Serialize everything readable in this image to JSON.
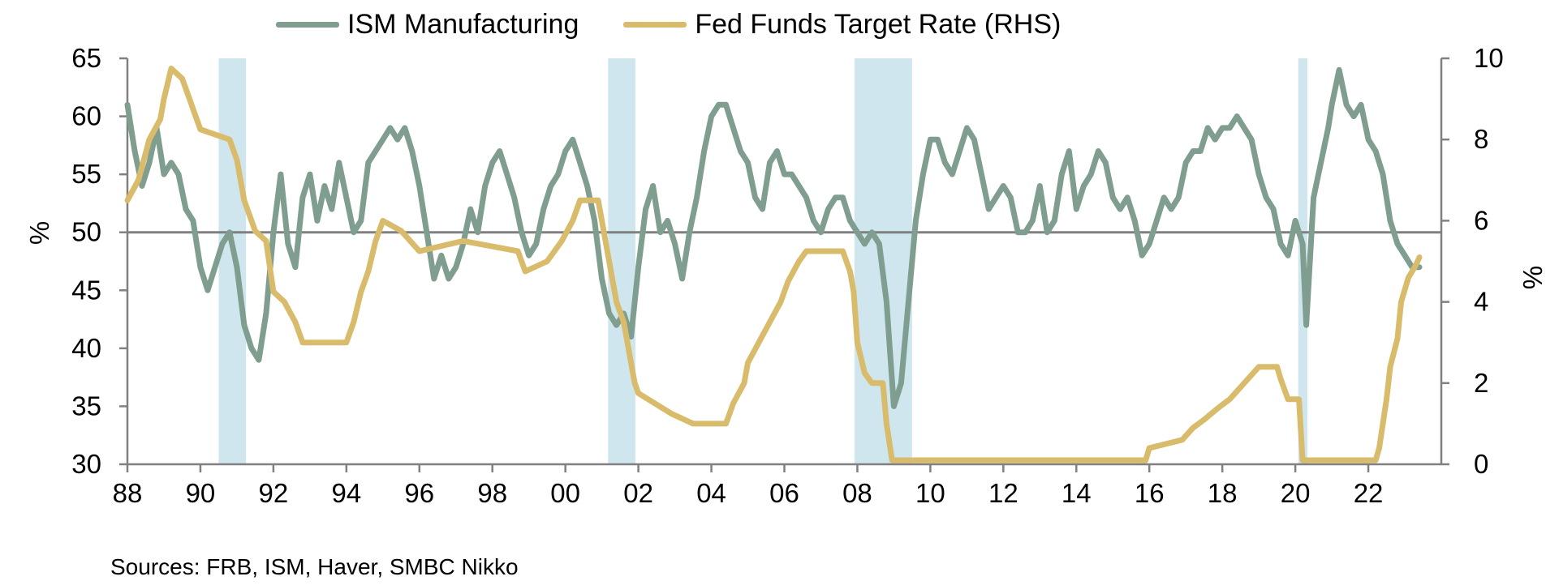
{
  "chart_data": {
    "type": "line",
    "title": "",
    "legend": [
      {
        "name": "ISM Manufacturing",
        "color": "#7f9e8f"
      },
      {
        "name": "Fed Funds Target Rate (RHS)",
        "color": "#d9bb6c"
      }
    ],
    "xlabel": "",
    "ylabel_left": "%",
    "ylabel_right": "%",
    "x_range": [
      1988.0,
      2024.0
    ],
    "x_ticks": [
      1988,
      1990,
      1992,
      1994,
      1996,
      1998,
      2000,
      2002,
      2004,
      2006,
      2008,
      2010,
      2012,
      2014,
      2016,
      2018,
      2020,
      2022
    ],
    "x_tick_labels": [
      "88",
      "90",
      "92",
      "94",
      "96",
      "98",
      "00",
      "02",
      "04",
      "06",
      "08",
      "10",
      "12",
      "14",
      "16",
      "18",
      "20",
      "22"
    ],
    "y_left": {
      "min": 30,
      "max": 65,
      "ticks": [
        30,
        35,
        40,
        45,
        50,
        55,
        60,
        65
      ]
    },
    "y_right": {
      "min": 0,
      "max": 10,
      "ticks": [
        0,
        2,
        4,
        6,
        8,
        10
      ]
    },
    "reference_line": {
      "axis": "left",
      "value": 50
    },
    "recessions": [
      [
        1990.5,
        1991.25
      ],
      [
        2001.17,
        2001.92
      ],
      [
        2007.92,
        2009.5
      ],
      [
        2020.08,
        2020.33
      ]
    ],
    "series": [
      {
        "name": "ISM Manufacturing",
        "axis": "left",
        "color": "#7f9e8f",
        "points": [
          [
            1988.0,
            61
          ],
          [
            1988.2,
            57
          ],
          [
            1988.4,
            54
          ],
          [
            1988.6,
            56
          ],
          [
            1988.8,
            59
          ],
          [
            1989.0,
            55
          ],
          [
            1989.2,
            56
          ],
          [
            1989.4,
            55
          ],
          [
            1989.6,
            52
          ],
          [
            1989.8,
            51
          ],
          [
            1990.0,
            47
          ],
          [
            1990.2,
            45
          ],
          [
            1990.4,
            47
          ],
          [
            1990.6,
            49
          ],
          [
            1990.8,
            50
          ],
          [
            1991.0,
            47
          ],
          [
            1991.2,
            42
          ],
          [
            1991.4,
            40
          ],
          [
            1991.6,
            39
          ],
          [
            1991.8,
            43
          ],
          [
            1992.0,
            50
          ],
          [
            1992.2,
            55
          ],
          [
            1992.4,
            49
          ],
          [
            1992.6,
            47
          ],
          [
            1992.8,
            53
          ],
          [
            1993.0,
            55
          ],
          [
            1993.2,
            51
          ],
          [
            1993.4,
            54
          ],
          [
            1993.6,
            52
          ],
          [
            1993.8,
            56
          ],
          [
            1994.0,
            53
          ],
          [
            1994.2,
            50
          ],
          [
            1994.4,
            51
          ],
          [
            1994.6,
            56
          ],
          [
            1994.8,
            57
          ],
          [
            1995.0,
            58
          ],
          [
            1995.2,
            59
          ],
          [
            1995.4,
            58
          ],
          [
            1995.6,
            59
          ],
          [
            1995.8,
            57
          ],
          [
            1996.0,
            54
          ],
          [
            1996.2,
            50
          ],
          [
            1996.4,
            46
          ],
          [
            1996.6,
            48
          ],
          [
            1996.8,
            46
          ],
          [
            1997.0,
            47
          ],
          [
            1997.2,
            49
          ],
          [
            1997.4,
            52
          ],
          [
            1997.6,
            50
          ],
          [
            1997.8,
            54
          ],
          [
            1998.0,
            56
          ],
          [
            1998.2,
            57
          ],
          [
            1998.4,
            55
          ],
          [
            1998.6,
            53
          ],
          [
            1998.8,
            50
          ],
          [
            1999.0,
            48
          ],
          [
            1999.2,
            49
          ],
          [
            1999.4,
            52
          ],
          [
            1999.6,
            54
          ],
          [
            1999.8,
            55
          ],
          [
            2000.0,
            57
          ],
          [
            2000.2,
            58
          ],
          [
            2000.4,
            56
          ],
          [
            2000.6,
            54
          ],
          [
            2000.8,
            51
          ],
          [
            2001.0,
            46
          ],
          [
            2001.2,
            43
          ],
          [
            2001.4,
            42
          ],
          [
            2001.6,
            43
          ],
          [
            2001.8,
            41
          ],
          [
            2002.0,
            47
          ],
          [
            2002.2,
            52
          ],
          [
            2002.4,
            54
          ],
          [
            2002.6,
            50
          ],
          [
            2002.8,
            51
          ],
          [
            2003.0,
            49
          ],
          [
            2003.2,
            46
          ],
          [
            2003.4,
            50
          ],
          [
            2003.6,
            53
          ],
          [
            2003.8,
            57
          ],
          [
            2004.0,
            60
          ],
          [
            2004.2,
            61
          ],
          [
            2004.4,
            61
          ],
          [
            2004.6,
            59
          ],
          [
            2004.8,
            57
          ],
          [
            2005.0,
            56
          ],
          [
            2005.2,
            53
          ],
          [
            2005.4,
            52
          ],
          [
            2005.6,
            56
          ],
          [
            2005.8,
            57
          ],
          [
            2006.0,
            55
          ],
          [
            2006.2,
            55
          ],
          [
            2006.4,
            54
          ],
          [
            2006.6,
            53
          ],
          [
            2006.8,
            51
          ],
          [
            2007.0,
            50
          ],
          [
            2007.2,
            52
          ],
          [
            2007.4,
            53
          ],
          [
            2007.6,
            53
          ],
          [
            2007.8,
            51
          ],
          [
            2008.0,
            50
          ],
          [
            2008.2,
            49
          ],
          [
            2008.4,
            50
          ],
          [
            2008.6,
            49
          ],
          [
            2008.8,
            44
          ],
          [
            2009.0,
            35
          ],
          [
            2009.2,
            37
          ],
          [
            2009.4,
            44
          ],
          [
            2009.6,
            51
          ],
          [
            2009.8,
            55
          ],
          [
            2010.0,
            58
          ],
          [
            2010.2,
            58
          ],
          [
            2010.4,
            56
          ],
          [
            2010.6,
            55
          ],
          [
            2010.8,
            57
          ],
          [
            2011.0,
            59
          ],
          [
            2011.2,
            58
          ],
          [
            2011.4,
            55
          ],
          [
            2011.6,
            52
          ],
          [
            2011.8,
            53
          ],
          [
            2012.0,
            54
          ],
          [
            2012.2,
            53
          ],
          [
            2012.4,
            50
          ],
          [
            2012.6,
            50
          ],
          [
            2012.8,
            51
          ],
          [
            2013.0,
            54
          ],
          [
            2013.2,
            50
          ],
          [
            2013.4,
            51
          ],
          [
            2013.6,
            55
          ],
          [
            2013.8,
            57
          ],
          [
            2014.0,
            52
          ],
          [
            2014.2,
            54
          ],
          [
            2014.4,
            55
          ],
          [
            2014.6,
            57
          ],
          [
            2014.8,
            56
          ],
          [
            2015.0,
            53
          ],
          [
            2015.2,
            52
          ],
          [
            2015.4,
            53
          ],
          [
            2015.6,
            51
          ],
          [
            2015.8,
            48
          ],
          [
            2016.0,
            49
          ],
          [
            2016.2,
            51
          ],
          [
            2016.4,
            53
          ],
          [
            2016.6,
            52
          ],
          [
            2016.8,
            53
          ],
          [
            2017.0,
            56
          ],
          [
            2017.2,
            57
          ],
          [
            2017.4,
            57
          ],
          [
            2017.6,
            59
          ],
          [
            2017.8,
            58
          ],
          [
            2018.0,
            59
          ],
          [
            2018.2,
            59
          ],
          [
            2018.4,
            60
          ],
          [
            2018.6,
            59
          ],
          [
            2018.8,
            58
          ],
          [
            2019.0,
            55
          ],
          [
            2019.2,
            53
          ],
          [
            2019.4,
            52
          ],
          [
            2019.6,
            49
          ],
          [
            2019.8,
            48
          ],
          [
            2020.0,
            51
          ],
          [
            2020.2,
            49
          ],
          [
            2020.3,
            42
          ],
          [
            2020.5,
            53
          ],
          [
            2020.7,
            56
          ],
          [
            2020.9,
            59
          ],
          [
            2021.0,
            61
          ],
          [
            2021.2,
            64
          ],
          [
            2021.4,
            61
          ],
          [
            2021.6,
            60
          ],
          [
            2021.8,
            61
          ],
          [
            2022.0,
            58
          ],
          [
            2022.2,
            57
          ],
          [
            2022.4,
            55
          ],
          [
            2022.6,
            51
          ],
          [
            2022.8,
            49
          ],
          [
            2023.0,
            48
          ],
          [
            2023.2,
            47
          ],
          [
            2023.4,
            47
          ]
        ]
      },
      {
        "name": "Fed Funds Target Rate (RHS)",
        "axis": "right",
        "color": "#d9bb6c",
        "points": [
          [
            1988.0,
            6.5
          ],
          [
            1988.3,
            7
          ],
          [
            1988.6,
            8
          ],
          [
            1988.9,
            8.5
          ],
          [
            1989.0,
            9
          ],
          [
            1989.2,
            9.75
          ],
          [
            1989.5,
            9.5
          ],
          [
            1989.7,
            9
          ],
          [
            1989.9,
            8.5
          ],
          [
            1990.0,
            8.25
          ],
          [
            1990.8,
            8
          ],
          [
            1991.0,
            7.5
          ],
          [
            1991.2,
            6.5
          ],
          [
            1991.5,
            5.75
          ],
          [
            1991.8,
            5.5
          ],
          [
            1992.0,
            4.25
          ],
          [
            1992.3,
            4
          ],
          [
            1992.6,
            3.5
          ],
          [
            1992.8,
            3
          ],
          [
            1994.0,
            3
          ],
          [
            1994.2,
            3.5
          ],
          [
            1994.4,
            4.25
          ],
          [
            1994.6,
            4.75
          ],
          [
            1994.8,
            5.5
          ],
          [
            1995.0,
            6
          ],
          [
            1995.5,
            5.75
          ],
          [
            1996.0,
            5.25
          ],
          [
            1997.2,
            5.5
          ],
          [
            1998.7,
            5.25
          ],
          [
            1998.9,
            4.75
          ],
          [
            1999.5,
            5
          ],
          [
            1999.7,
            5.25
          ],
          [
            1999.9,
            5.5
          ],
          [
            2000.2,
            6
          ],
          [
            2000.4,
            6.5
          ],
          [
            2000.9,
            6.5
          ],
          [
            2001.0,
            6
          ],
          [
            2001.2,
            5
          ],
          [
            2001.4,
            4
          ],
          [
            2001.6,
            3.5
          ],
          [
            2001.8,
            2.5
          ],
          [
            2001.9,
            2
          ],
          [
            2002.0,
            1.75
          ],
          [
            2002.9,
            1.25
          ],
          [
            2003.5,
            1
          ],
          [
            2004.4,
            1
          ],
          [
            2004.6,
            1.5
          ],
          [
            2004.9,
            2
          ],
          [
            2005.0,
            2.5
          ],
          [
            2005.3,
            3
          ],
          [
            2005.6,
            3.5
          ],
          [
            2005.9,
            4
          ],
          [
            2006.1,
            4.5
          ],
          [
            2006.4,
            5
          ],
          [
            2006.6,
            5.25
          ],
          [
            2007.6,
            5.25
          ],
          [
            2007.8,
            4.75
          ],
          [
            2007.9,
            4.25
          ],
          [
            2008.0,
            3
          ],
          [
            2008.2,
            2.25
          ],
          [
            2008.4,
            2
          ],
          [
            2008.7,
            2
          ],
          [
            2008.8,
            1
          ],
          [
            2008.95,
            0.1
          ],
          [
            2015.9,
            0.1
          ],
          [
            2016.0,
            0.4
          ],
          [
            2016.9,
            0.6
          ],
          [
            2017.2,
            0.9
          ],
          [
            2017.5,
            1.1
          ],
          [
            2017.9,
            1.4
          ],
          [
            2018.2,
            1.6
          ],
          [
            2018.5,
            1.9
          ],
          [
            2018.7,
            2.1
          ],
          [
            2019.0,
            2.4
          ],
          [
            2019.5,
            2.4
          ],
          [
            2019.6,
            2.1
          ],
          [
            2019.8,
            1.6
          ],
          [
            2020.1,
            1.6
          ],
          [
            2020.2,
            0.1
          ],
          [
            2022.2,
            0.1
          ],
          [
            2022.3,
            0.4
          ],
          [
            2022.5,
            1.6
          ],
          [
            2022.6,
            2.4
          ],
          [
            2022.8,
            3.1
          ],
          [
            2022.9,
            4
          ],
          [
            2023.1,
            4.6
          ],
          [
            2023.3,
            4.9
          ],
          [
            2023.4,
            5.1
          ]
        ]
      }
    ],
    "source": "Sources: FRB, ISM, Haver, SMBC Nikko"
  }
}
